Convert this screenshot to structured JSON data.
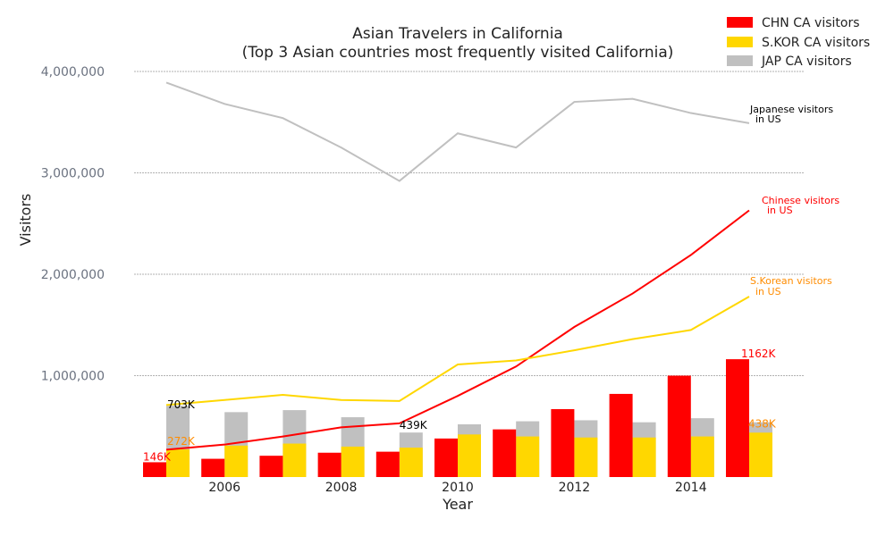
{
  "chart_data": {
    "type": "bar",
    "title": "Asian Travelers in California",
    "subtitle": "(Top 3 Asian countries most frequently visited California)",
    "xlabel": "Year",
    "ylabel": "Visitors",
    "ylim": [
      0,
      4000000
    ],
    "yticks": [
      1000000,
      2000000,
      3000000,
      4000000
    ],
    "ytick_labels": [
      "1,000,000",
      "2,000,000",
      "3,000,000",
      "4,000,000"
    ],
    "xticks": [
      2006,
      2008,
      2010,
      2012,
      2014
    ],
    "xtick_labels": [
      "2006",
      "2008",
      "2010",
      "2012",
      "2014"
    ],
    "grid": "horizontal dashed",
    "legend_position": "top-right",
    "x": [
      2005,
      2006,
      2007,
      2008,
      2009,
      2010,
      2011,
      2012,
      2013,
      2014,
      2015
    ],
    "bar_series": [
      {
        "name": "CHN CA visitors",
        "color": "#ff0000",
        "group": "left",
        "values": [
          146000,
          180000,
          210000,
          240000,
          250000,
          380000,
          470000,
          670000,
          820000,
          1000000,
          1162000
        ]
      },
      {
        "name": "S.KOR CA visitors",
        "color": "#ffd700",
        "group": "right",
        "values": [
          272000,
          310000,
          330000,
          300000,
          290000,
          420000,
          400000,
          390000,
          390000,
          400000,
          438000
        ]
      },
      {
        "name": "JAP CA visitors",
        "color": "#c0c0c0",
        "group": "right",
        "values": [
          703000,
          640000,
          660000,
          590000,
          439000,
          520000,
          550000,
          560000,
          540000,
          580000,
          540000
        ]
      }
    ],
    "line_series": [
      {
        "label": "Japanese visitors in US",
        "color": "#c0c0c0",
        "values": [
          3890000,
          3680000,
          3540000,
          3250000,
          2920000,
          3390000,
          3250000,
          3700000,
          3730000,
          3590000,
          3490000
        ]
      },
      {
        "label": "Chinese visitors in US",
        "color": "#ff0000",
        "values": [
          270000,
          320000,
          400000,
          490000,
          530000,
          800000,
          1090000,
          1480000,
          1810000,
          2190000,
          2630000
        ]
      },
      {
        "label": "S.Korean visitors in US",
        "color": "#ffd700",
        "values": [
          710000,
          760000,
          810000,
          760000,
          750000,
          1110000,
          1150000,
          1250000,
          1360000,
          1450000,
          1780000
        ]
      }
    ],
    "annotations": {
      "japanese": {
        "line1": "Japanese visitors",
        "line2": "in US",
        "color": "#000000"
      },
      "chinese": {
        "line1": "Chinese visitors",
        "line2": "in US",
        "color": "#ff0000"
      },
      "korean": {
        "line1": "S.Korean visitors",
        "line2": "in US",
        "color": "#ff8c00"
      }
    },
    "data_labels": [
      {
        "text": "146K",
        "x": 2005,
        "value": 146000,
        "color": "#ff0000"
      },
      {
        "text": "272K",
        "x": 2005,
        "value": 272000,
        "color": "#ff8c00"
      },
      {
        "text": "703K",
        "x": 2005,
        "value": 703000,
        "color": "#000000"
      },
      {
        "text": "439K",
        "x": 2009,
        "value": 439000,
        "color": "#000000"
      },
      {
        "text": "1162K",
        "x": 2015,
        "value": 1162000,
        "color": "#ff0000"
      },
      {
        "text": "438K",
        "x": 2015,
        "value": 438000,
        "color": "#ff8c00"
      }
    ]
  }
}
